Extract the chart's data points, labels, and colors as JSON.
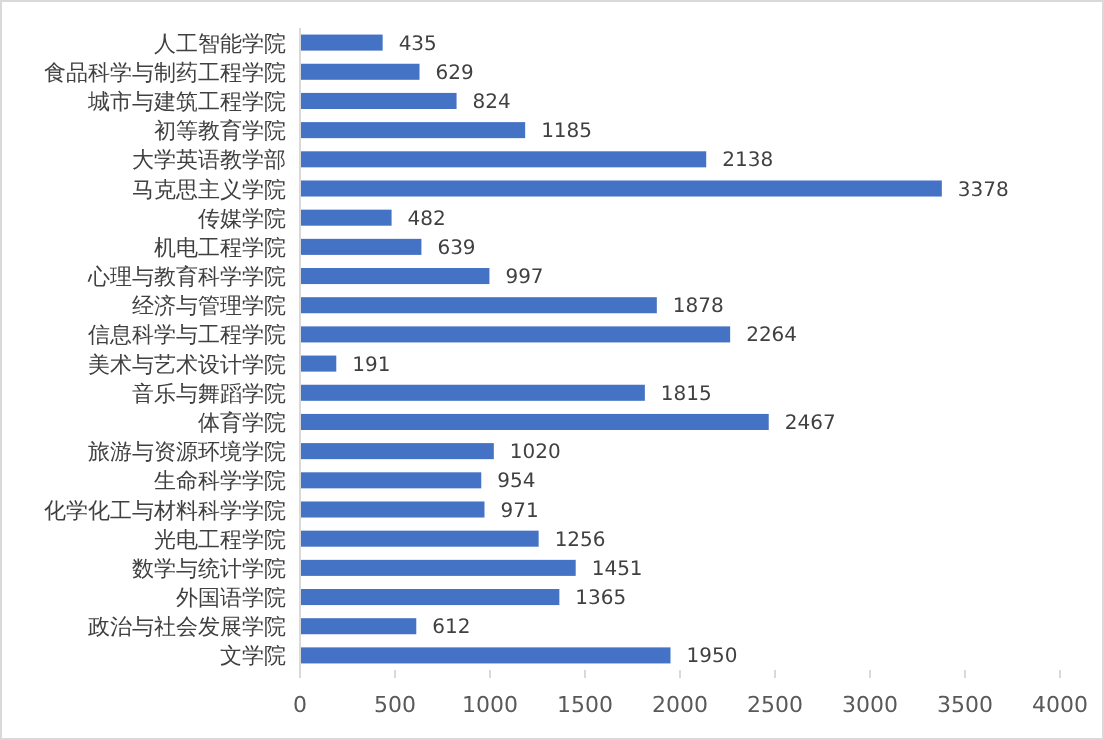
{
  "chart_data": {
    "type": "bar",
    "orientation": "horizontal",
    "categories": [
      "人工智能学院",
      "食品科学与制药工程学院",
      "城市与建筑工程学院",
      "初等教育学院",
      "大学英语教学部",
      "马克思主义学院",
      "传媒学院",
      "机电工程学院",
      "心理与教育科学学院",
      "经济与管理学院",
      "信息科学与工程学院",
      "美术与艺术设计学院",
      "音乐与舞蹈学院",
      "体育学院",
      "旅游与资源环境学院",
      "生命科学学院",
      "化学化工与材料科学学院",
      "光电工程学院",
      "数学与统计学院",
      "外国语学院",
      "政治与社会发展学院",
      "文学院"
    ],
    "values": [
      435,
      629,
      824,
      1185,
      2138,
      3378,
      482,
      639,
      997,
      1878,
      2264,
      191,
      1815,
      2467,
      1020,
      954,
      971,
      1256,
      1451,
      1365,
      612,
      1950
    ],
    "color": "#4472c4",
    "data_labels": true,
    "grid": false,
    "xlim": [
      0,
      4000
    ],
    "xticks": [
      0,
      500,
      1000,
      1500,
      2000,
      2500,
      3000,
      3500,
      4000
    ]
  }
}
